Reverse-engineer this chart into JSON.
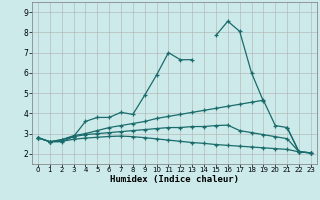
{
  "xlabel": "Humidex (Indice chaleur)",
  "background_color": "#cceaea",
  "grid_color": "#b0b0b0",
  "line_color": "#1a6b6b",
  "xlim": [
    -0.5,
    23.5
  ],
  "ylim": [
    1.5,
    9.5
  ],
  "xticks": [
    0,
    1,
    2,
    3,
    4,
    5,
    6,
    7,
    8,
    9,
    10,
    11,
    12,
    13,
    14,
    15,
    16,
    17,
    18,
    19,
    20,
    21,
    22,
    23
  ],
  "yticks": [
    2,
    3,
    4,
    5,
    6,
    7,
    8,
    9
  ],
  "series": [
    [
      2.8,
      2.6,
      2.6,
      2.85,
      3.6,
      3.8,
      3.8,
      4.05,
      3.95,
      4.9,
      5.9,
      7.0,
      6.65,
      6.65,
      null,
      7.85,
      8.55,
      8.05,
      6.0,
      4.6,
      null,
      3.3,
      2.1,
      2.05
    ],
    [
      2.8,
      2.6,
      2.7,
      2.9,
      3.0,
      3.15,
      3.3,
      3.4,
      3.5,
      3.6,
      3.75,
      3.85,
      3.95,
      4.05,
      4.15,
      4.25,
      4.35,
      4.45,
      4.55,
      4.65,
      3.4,
      3.3,
      2.1,
      2.05
    ],
    [
      2.8,
      2.6,
      2.7,
      2.85,
      2.95,
      3.0,
      3.05,
      3.1,
      3.15,
      3.2,
      3.25,
      3.3,
      3.3,
      3.35,
      3.35,
      3.4,
      3.42,
      3.15,
      3.05,
      2.95,
      2.85,
      2.75,
      2.1,
      2.05
    ],
    [
      2.8,
      2.6,
      2.62,
      2.72,
      2.78,
      2.82,
      2.86,
      2.88,
      2.85,
      2.8,
      2.74,
      2.68,
      2.62,
      2.56,
      2.52,
      2.46,
      2.42,
      2.38,
      2.34,
      2.3,
      2.26,
      2.22,
      2.1,
      2.05
    ]
  ]
}
